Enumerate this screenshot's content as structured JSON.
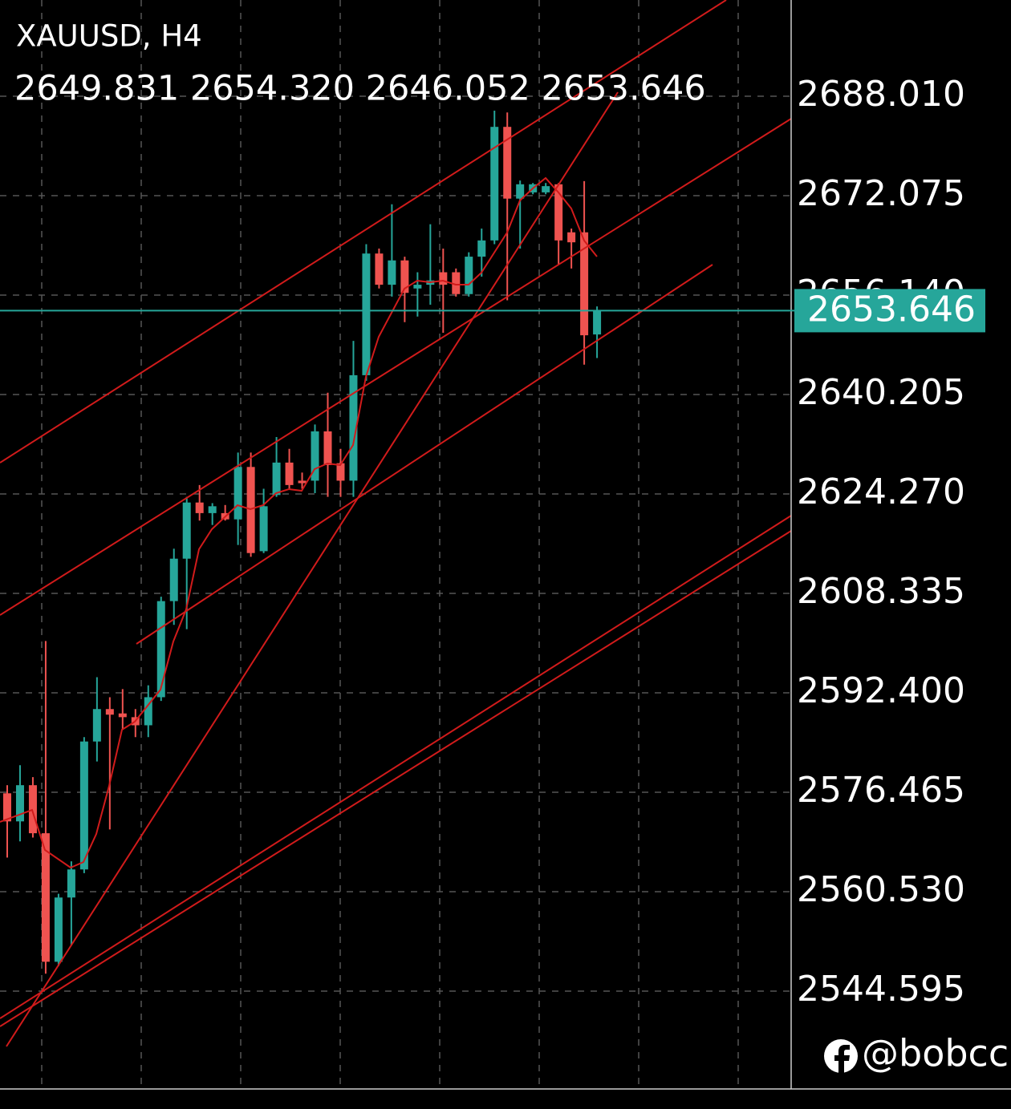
{
  "chart_data": {
    "type": "candlestick",
    "title": "XAUUSD, H4",
    "header": "2649.831 2654.320 2646.052 2653.646",
    "open": [
      2576.3,
      2571.8,
      2577.6,
      2569.9,
      2549.3,
      2559.6,
      2564.1,
      2584.6,
      2589.8,
      2589.1,
      2588.5,
      2587.2,
      2591.7,
      2607.1,
      2613.9,
      2622.9,
      2621.2,
      2621.2,
      2620.2,
      2628.6,
      2615.1,
      2624.1,
      2629.3,
      2626.4,
      2626.4,
      2634.3,
      2629.2,
      2626.4,
      2643.3,
      2662.8,
      2657.8,
      2661.7,
      2657.2,
      2657.8,
      2659.8,
      2659.8,
      2656.3,
      2662.3,
      2664.9,
      2683.1,
      2671.6,
      2672.6,
      2672.6,
      2673.9,
      2666.2,
      2666.2,
      2649.831
    ],
    "high": [
      2577.6,
      2580.8,
      2578.9,
      2600.7,
      2560.2,
      2565.4,
      2585.3,
      2594.9,
      2591.7,
      2593.0,
      2589.8,
      2593.6,
      2607.8,
      2615.5,
      2623.8,
      2625.7,
      2622.8,
      2622.5,
      2630.9,
      2630.9,
      2625.1,
      2633.4,
      2631.5,
      2627.7,
      2635.4,
      2640.5,
      2631.5,
      2648.8,
      2664.3,
      2663.6,
      2670.7,
      2662.3,
      2659.8,
      2667.5,
      2663.6,
      2660.4,
      2663.0,
      2666.8,
      2685.7,
      2685.4,
      2674.5,
      2674.1,
      2674.1,
      2674.1,
      2666.8,
      2674.4,
      2654.32
    ],
    "low": [
      2566.0,
      2568.6,
      2569.2,
      2547.4,
      2548.6,
      2551.9,
      2563.5,
      2581.4,
      2570.5,
      2586.6,
      2585.3,
      2585.3,
      2591.1,
      2603.3,
      2602.6,
      2620.0,
      2619.3,
      2620.0,
      2616.1,
      2614.2,
      2614.8,
      2623.8,
      2625.1,
      2625.1,
      2624.4,
      2623.8,
      2623.8,
      2623.8,
      2642.4,
      2657.2,
      2655.9,
      2651.8,
      2652.7,
      2654.6,
      2650.1,
      2655.9,
      2655.9,
      2659.1,
      2664.3,
      2655.3,
      2663.6,
      2672.3,
      2672.3,
      2661.0,
      2660.4,
      2645.0,
      2646.052
    ],
    "close": [
      2571.8,
      2577.6,
      2569.9,
      2549.3,
      2559.6,
      2564.1,
      2584.6,
      2589.8,
      2588.9,
      2588.5,
      2587.2,
      2591.7,
      2607.1,
      2613.9,
      2622.9,
      2621.2,
      2622.3,
      2620.2,
      2628.6,
      2614.8,
      2622.3,
      2629.3,
      2625.7,
      2626.0,
      2634.3,
      2628.9,
      2626.4,
      2643.3,
      2662.8,
      2657.8,
      2661.7,
      2656.5,
      2657.8,
      2658.5,
      2657.8,
      2656.3,
      2662.3,
      2664.9,
      2683.1,
      2671.6,
      2673.9,
      2673.9,
      2673.6,
      2664.9,
      2664.6,
      2649.7,
      2653.646
    ],
    "up_color": "#26a69a",
    "down_color": "#ef5350",
    "price_line_color": "#26a69a",
    "ylim": [
      2528.92,
      2703.43
    ],
    "yticks": [
      {
        "value": 2688.01,
        "label": "2688.010"
      },
      2672.075,
      {
        "value": 2656.14,
        "label": "2656.140"
      },
      2640.205,
      {
        "value": 2624.27,
        "label": "2624.270"
      },
      2608.335,
      {
        "value": 2592.4,
        "label": "2592.400"
      },
      2576.465,
      {
        "value": 2560.53,
        "label": "2560.530"
      },
      2544.595
    ],
    "grid": true,
    "watermark": "@bobcc"
  }
}
